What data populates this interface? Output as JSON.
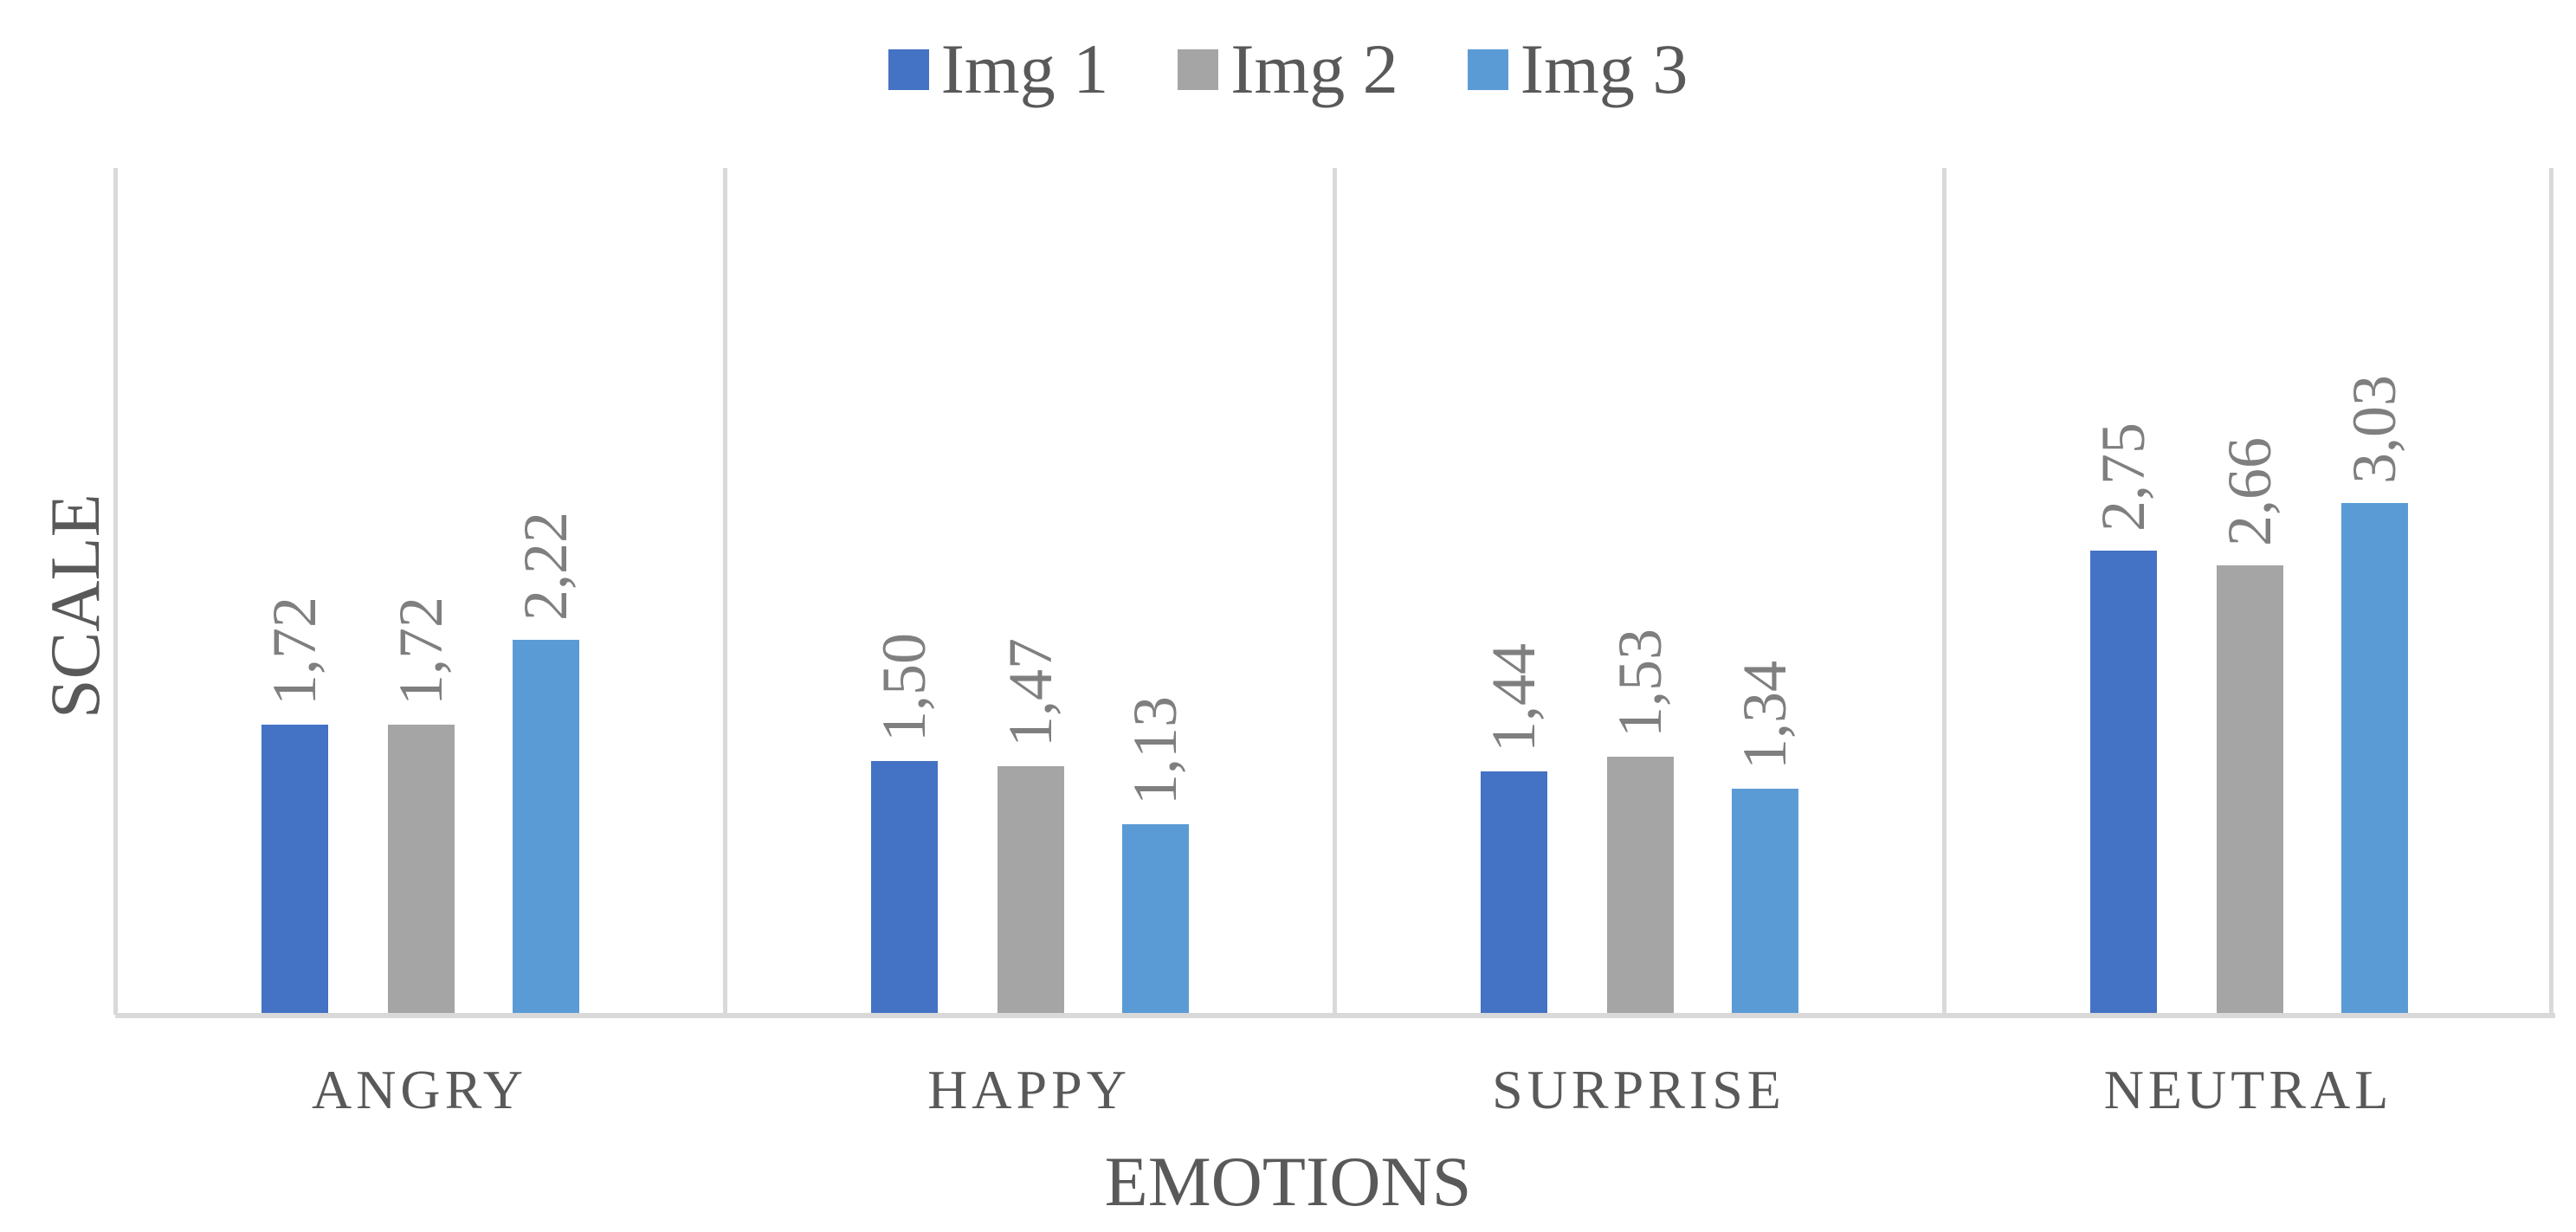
{
  "legend": [
    {
      "label": "Img 1",
      "color": "#4472c4"
    },
    {
      "label": "Img 2",
      "color": "#a5a5a5"
    },
    {
      "label": "Img 3",
      "color": "#5b9bd5"
    }
  ],
  "axes": {
    "xlabel": "EMOTIONS",
    "ylabel": "SCALE"
  },
  "categories": [
    "ANGRY",
    "HAPPY",
    "SURPRISE",
    "NEUTRAL"
  ],
  "labels": {
    "ANGRY": [
      "1,72",
      "1,72",
      "2,22"
    ],
    "HAPPY": [
      "1,50",
      "1,47",
      "1,13"
    ],
    "SURPRISE": [
      "1,44",
      "1,53",
      "1,34"
    ],
    "NEUTRAL": [
      "2,75",
      "2,66",
      "3,03"
    ]
  },
  "chart_data": {
    "type": "bar",
    "title": "",
    "xlabel": "EMOTIONS",
    "ylabel": "SCALE",
    "categories": [
      "ANGRY",
      "HAPPY",
      "SURPRISE",
      "NEUTRAL"
    ],
    "series": [
      {
        "name": "Img 1",
        "color": "#4472c4",
        "values": [
          1.72,
          1.5,
          1.44,
          2.75
        ]
      },
      {
        "name": "Img 2",
        "color": "#a5a5a5",
        "values": [
          1.72,
          1.47,
          1.53,
          2.66
        ]
      },
      {
        "name": "Img 3",
        "color": "#5b9bd5",
        "values": [
          2.22,
          1.13,
          1.34,
          3.03
        ]
      }
    ],
    "ylim": [
      0,
      5
    ],
    "grid": "vertical category separators",
    "legend_position": "top",
    "data_labels": "rotated, comma decimal separator"
  }
}
